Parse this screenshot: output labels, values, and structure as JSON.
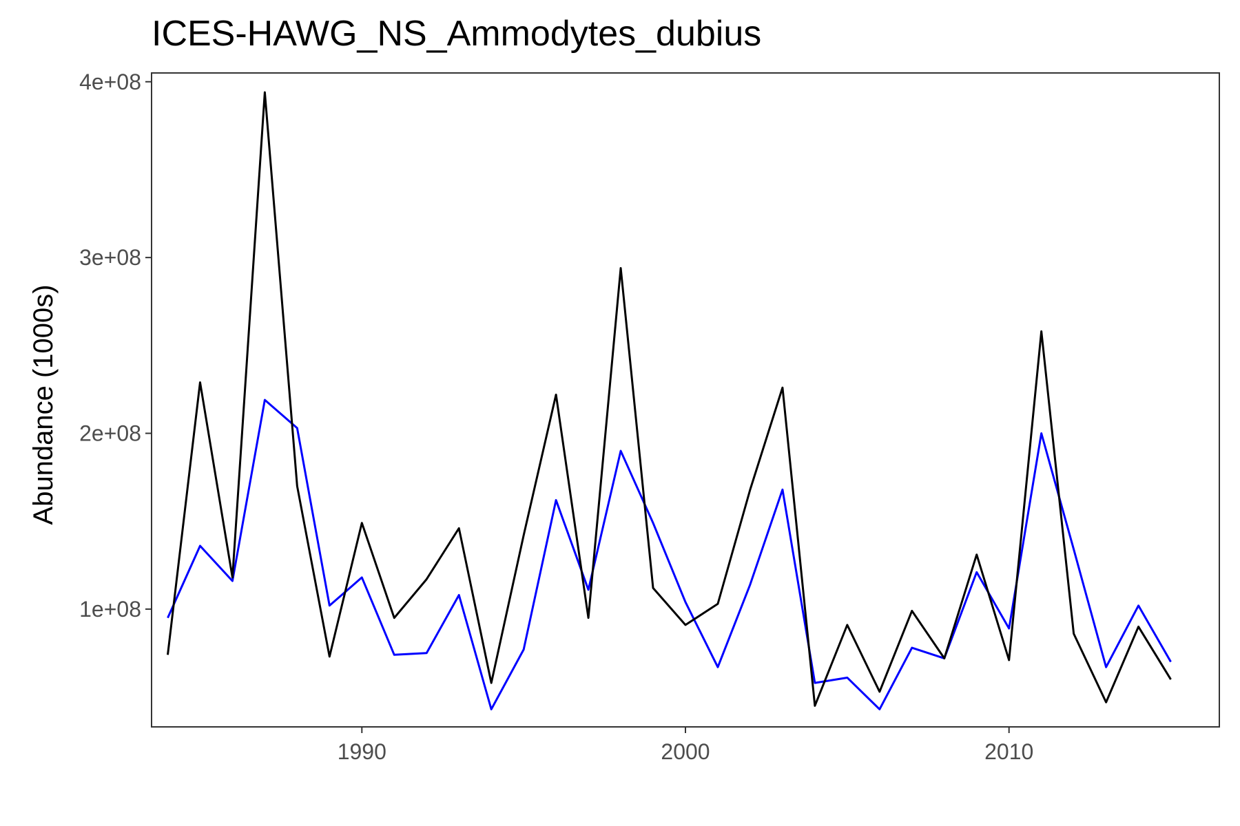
{
  "chart_data": {
    "type": "line",
    "title": "ICES-HAWG_NS_Ammodytes_dubius",
    "xlabel": "",
    "ylabel": "Abundance (1000s)",
    "xlim": [
      1983.5,
      2016.5
    ],
    "ylim": [
      33000000,
      405000000
    ],
    "x_ticks": [
      1990,
      2000,
      2010
    ],
    "x_tick_labels": [
      "1990",
      "2000",
      "2010"
    ],
    "y_ticks": [
      100000000,
      200000000,
      300000000,
      400000000
    ],
    "y_tick_labels": [
      "1e+08",
      "2e+08",
      "3e+08",
      "4e+08"
    ],
    "grid": false,
    "legend": "none",
    "x": [
      1984,
      1985,
      1986,
      1987,
      1988,
      1989,
      1990,
      1991,
      1992,
      1993,
      1994,
      1995,
      1996,
      1997,
      1998,
      1999,
      2000,
      2001,
      2002,
      2003,
      2004,
      2005,
      2006,
      2007,
      2008,
      2009,
      2010,
      2011,
      2012,
      2013,
      2014,
      2015
    ],
    "series": [
      {
        "color": "#0000ff",
        "values": [
          95000000,
          136000000,
          116000000,
          219000000,
          203000000,
          102000000,
          118000000,
          74000000,
          75000000,
          108000000,
          43000000,
          77000000,
          162000000,
          111000000,
          190000000,
          149000000,
          104000000,
          67000000,
          114000000,
          168000000,
          58000000,
          61000000,
          43000000,
          78000000,
          72000000,
          121000000,
          89000000,
          200000000,
          134000000,
          67000000,
          102000000,
          70000000
        ]
      },
      {
        "color": "#000000",
        "values": [
          74000000,
          229000000,
          118000000,
          394000000,
          170000000,
          73000000,
          149000000,
          95000000,
          117000000,
          146000000,
          58000000,
          142000000,
          222000000,
          95000000,
          294000000,
          112000000,
          91000000,
          103000000,
          168000000,
          226000000,
          45000000,
          91000000,
          53000000,
          99000000,
          72000000,
          131000000,
          71000000,
          258000000,
          86000000,
          47000000,
          90000000,
          60000000
        ]
      }
    ]
  }
}
